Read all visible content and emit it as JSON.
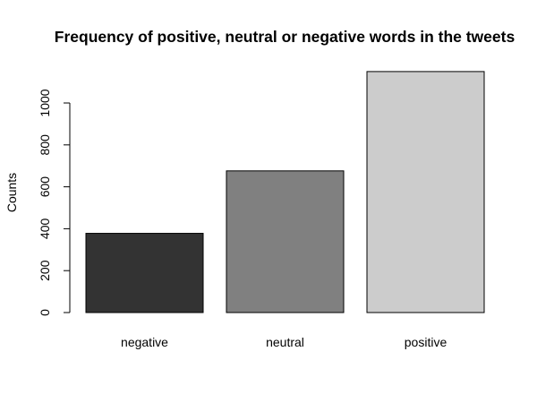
{
  "chart_data": {
    "type": "bar",
    "title": "Frequency of positive, neutral or negative words in the tweets",
    "xlabel": "",
    "ylabel": "Counts",
    "categories": [
      "negative",
      "neutral",
      "positive"
    ],
    "values": [
      378,
      676,
      1150
    ],
    "colors": [
      "#333333",
      "#808080",
      "#cccccc"
    ],
    "bar_border_color": "#000000",
    "ylim": [
      0,
      1150
    ],
    "yticks": [
      0,
      200,
      400,
      600,
      800,
      1000
    ],
    "grid": false,
    "legend": "none"
  }
}
